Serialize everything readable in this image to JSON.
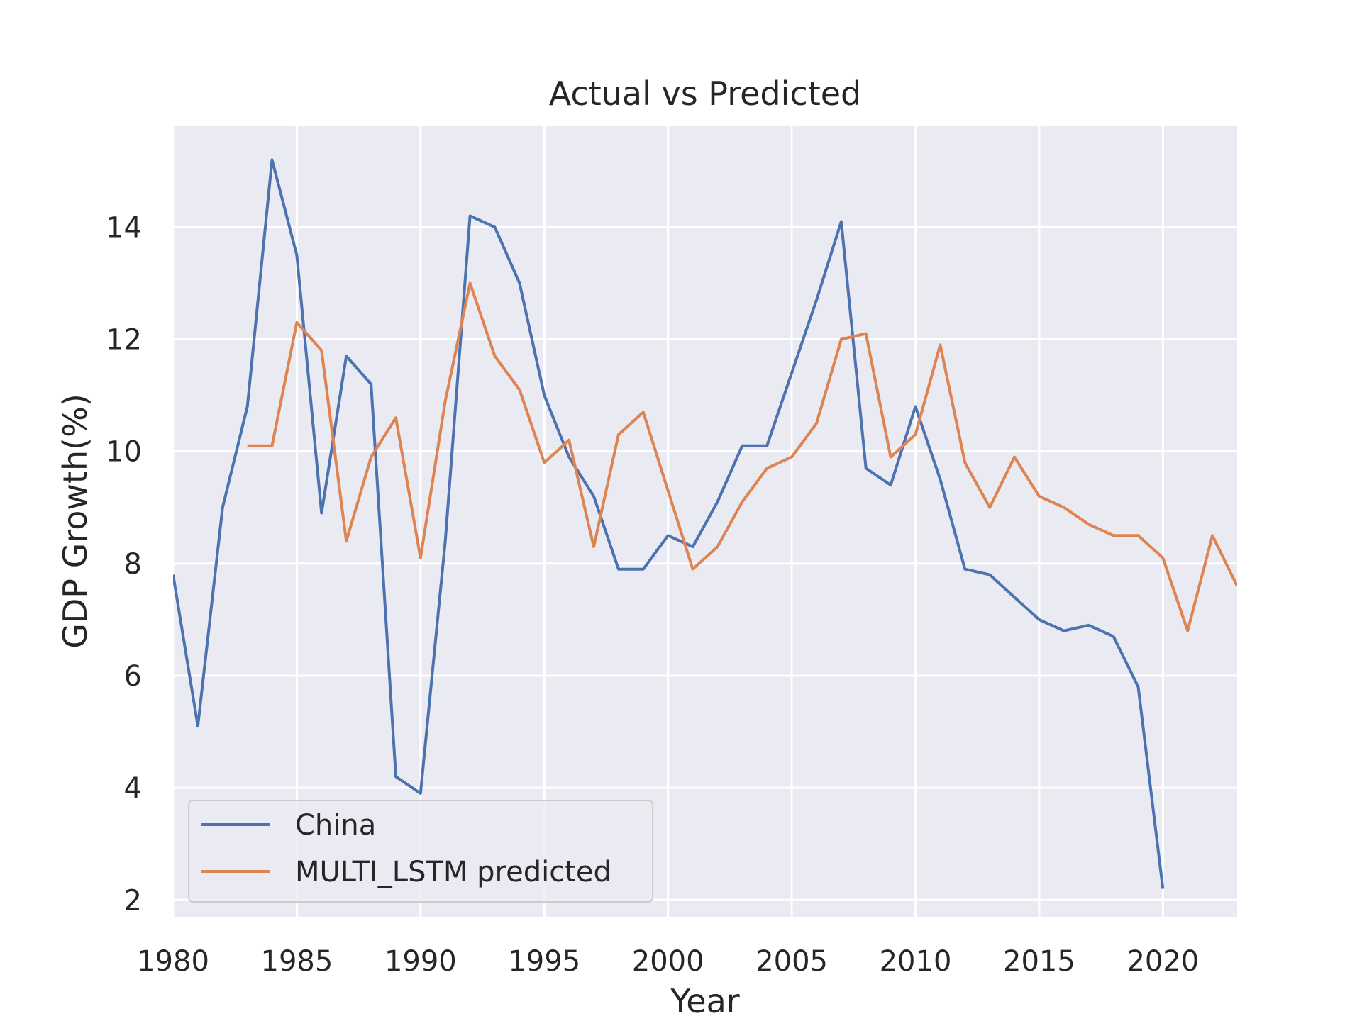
{
  "chart_data": {
    "type": "line",
    "title": "Actual vs Predicted",
    "xlabel": "Year",
    "ylabel": "GDP Growth(%)",
    "xlim": [
      1980,
      2023
    ],
    "ylim": [
      1.7,
      15.8
    ],
    "xticks": [
      1980,
      1985,
      1990,
      1995,
      2000,
      2005,
      2010,
      2015,
      2020
    ],
    "yticks": [
      2,
      4,
      6,
      8,
      10,
      12,
      14
    ],
    "grid": true,
    "legend_position": "lower-left",
    "series": [
      {
        "name": "China",
        "color": "#4c72b0",
        "x": [
          1980,
          1981,
          1982,
          1983,
          1984,
          1985,
          1986,
          1987,
          1988,
          1989,
          1990,
          1991,
          1992,
          1993,
          1994,
          1995,
          1996,
          1997,
          1998,
          1999,
          2000,
          2001,
          2002,
          2003,
          2004,
          2005,
          2006,
          2007,
          2008,
          2009,
          2010,
          2011,
          2012,
          2013,
          2014,
          2015,
          2016,
          2017,
          2018,
          2019,
          2020
        ],
        "y": [
          7.8,
          5.1,
          9.0,
          10.8,
          15.2,
          13.5,
          8.9,
          11.7,
          11.2,
          4.2,
          3.9,
          8.4,
          14.2,
          14.0,
          13.0,
          11.0,
          9.9,
          9.2,
          7.9,
          7.9,
          8.5,
          8.3,
          9.1,
          10.1,
          10.1,
          11.4,
          12.7,
          14.1,
          9.7,
          9.4,
          10.8,
          9.5,
          7.9,
          7.8,
          7.4,
          7.0,
          6.8,
          6.9,
          6.7,
          5.8,
          2.2
        ]
      },
      {
        "name": "MULTI_LSTM predicted",
        "color": "#dd8452",
        "x": [
          1983,
          1984,
          1985,
          1986,
          1987,
          1988,
          1989,
          1990,
          1991,
          1992,
          1993,
          1994,
          1995,
          1996,
          1997,
          1998,
          1999,
          2000,
          2001,
          2002,
          2003,
          2004,
          2005,
          2006,
          2007,
          2008,
          2009,
          2010,
          2011,
          2012,
          2013,
          2014,
          2015,
          2016,
          2017,
          2018,
          2019,
          2020,
          2021,
          2022,
          2023
        ],
        "y": [
          10.1,
          10.1,
          12.3,
          11.8,
          8.4,
          9.9,
          10.6,
          8.1,
          10.9,
          13.0,
          11.7,
          11.1,
          9.8,
          10.2,
          8.3,
          10.3,
          10.7,
          9.3,
          7.9,
          8.3,
          9.1,
          9.7,
          9.9,
          10.5,
          12.0,
          12.1,
          9.9,
          10.3,
          11.9,
          9.8,
          9.0,
          9.9,
          9.2,
          9.0,
          8.7,
          8.5,
          8.5,
          8.1,
          6.8,
          8.5,
          7.6
        ]
      }
    ]
  }
}
